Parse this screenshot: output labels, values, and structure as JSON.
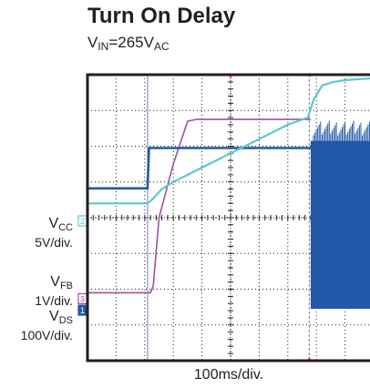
{
  "chart_data": {
    "type": "line",
    "title": "Turn On Delay",
    "subtitle_main": "V",
    "subtitle_sub": "IN",
    "subtitle_rest": "=265V",
    "subtitle_sub2": "AC",
    "xlabel": "100ms/div.",
    "grid": true,
    "divisions": {
      "x": 10,
      "y": 8
    },
    "xlim": [
      0,
      10
    ],
    "ylim": [
      0,
      8
    ],
    "channels": [
      {
        "id": "2",
        "name": "V",
        "sub": "CC",
        "scale": "5V/div.",
        "color": "#5bc8cf"
      },
      {
        "id": "3",
        "name": "V",
        "sub": "FB",
        "scale": "1V/div.",
        "color": "#a050a6"
      },
      {
        "id": "1",
        "name": "V",
        "sub": "DS",
        "scale": "100V/div.",
        "color": "#2357a7"
      }
    ],
    "series": [
      {
        "name": "VCC",
        "x": [
          0,
          2.1,
          2.25,
          2.6,
          3.0,
          4.0,
          5.0,
          6.0,
          7.0,
          7.7,
          7.9,
          8.2,
          8.6,
          9.0,
          10.0
        ],
        "y": [
          4.4,
          4.4,
          4.5,
          4.8,
          5.0,
          5.4,
          5.8,
          6.2,
          6.6,
          6.8,
          7.3,
          7.7,
          7.8,
          7.85,
          7.9
        ]
      },
      {
        "name": "VFB",
        "x": [
          0,
          2.2,
          2.3,
          2.5,
          3.0,
          3.5,
          3.8,
          7.8
        ],
        "y": [
          1.9,
          1.9,
          2.1,
          4.0,
          5.5,
          6.7,
          6.75,
          6.75
        ]
      },
      {
        "name": "VDS",
        "x": [
          0,
          2.1,
          2.15,
          7.8
        ],
        "y": [
          4.82,
          4.82,
          5.95,
          5.95
        ]
      },
      {
        "name": "VDS burst",
        "x": [
          7.8,
          10.0
        ],
        "y": [
          1.45,
          6.15
        ]
      }
    ],
    "cursors": [
      {
        "x": 2.1,
        "color": "#7c79b8",
        "style": "solid"
      },
      {
        "x": 7.75,
        "color": "#7c79b8",
        "style": "dashed"
      }
    ],
    "trigger_marker": {
      "x": 5.0,
      "color": "#f26522"
    },
    "bottom_marker": {
      "x": 7.75,
      "color": "#f26522"
    }
  }
}
